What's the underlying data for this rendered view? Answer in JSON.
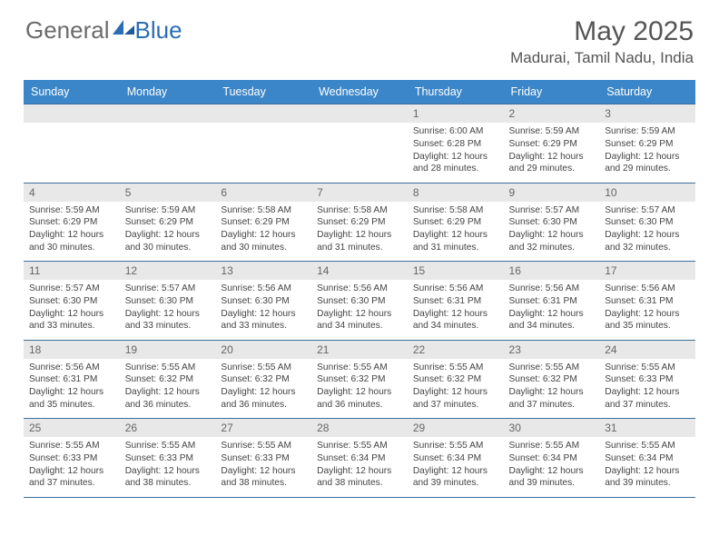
{
  "logo": {
    "text1": "General",
    "text2": "Blue",
    "color1": "#6b6b6b",
    "color2": "#2a6db3"
  },
  "title": "May 2025",
  "location": "Madurai, Tamil Nadu, India",
  "colors": {
    "header_bg": "#3b86c8",
    "header_text": "#ffffff",
    "border": "#3b6fa0",
    "daynum_bg": "#e8e8e8",
    "text": "#444444"
  },
  "day_headers": [
    "Sunday",
    "Monday",
    "Tuesday",
    "Wednesday",
    "Thursday",
    "Friday",
    "Saturday"
  ],
  "weeks": [
    [
      null,
      null,
      null,
      null,
      {
        "n": "1",
        "sr": "6:00 AM",
        "ss": "6:28 PM",
        "dl": "12 hours and 28 minutes."
      },
      {
        "n": "2",
        "sr": "5:59 AM",
        "ss": "6:29 PM",
        "dl": "12 hours and 29 minutes."
      },
      {
        "n": "3",
        "sr": "5:59 AM",
        "ss": "6:29 PM",
        "dl": "12 hours and 29 minutes."
      }
    ],
    [
      {
        "n": "4",
        "sr": "5:59 AM",
        "ss": "6:29 PM",
        "dl": "12 hours and 30 minutes."
      },
      {
        "n": "5",
        "sr": "5:59 AM",
        "ss": "6:29 PM",
        "dl": "12 hours and 30 minutes."
      },
      {
        "n": "6",
        "sr": "5:58 AM",
        "ss": "6:29 PM",
        "dl": "12 hours and 30 minutes."
      },
      {
        "n": "7",
        "sr": "5:58 AM",
        "ss": "6:29 PM",
        "dl": "12 hours and 31 minutes."
      },
      {
        "n": "8",
        "sr": "5:58 AM",
        "ss": "6:29 PM",
        "dl": "12 hours and 31 minutes."
      },
      {
        "n": "9",
        "sr": "5:57 AM",
        "ss": "6:30 PM",
        "dl": "12 hours and 32 minutes."
      },
      {
        "n": "10",
        "sr": "5:57 AM",
        "ss": "6:30 PM",
        "dl": "12 hours and 32 minutes."
      }
    ],
    [
      {
        "n": "11",
        "sr": "5:57 AM",
        "ss": "6:30 PM",
        "dl": "12 hours and 33 minutes."
      },
      {
        "n": "12",
        "sr": "5:57 AM",
        "ss": "6:30 PM",
        "dl": "12 hours and 33 minutes."
      },
      {
        "n": "13",
        "sr": "5:56 AM",
        "ss": "6:30 PM",
        "dl": "12 hours and 33 minutes."
      },
      {
        "n": "14",
        "sr": "5:56 AM",
        "ss": "6:30 PM",
        "dl": "12 hours and 34 minutes."
      },
      {
        "n": "15",
        "sr": "5:56 AM",
        "ss": "6:31 PM",
        "dl": "12 hours and 34 minutes."
      },
      {
        "n": "16",
        "sr": "5:56 AM",
        "ss": "6:31 PM",
        "dl": "12 hours and 34 minutes."
      },
      {
        "n": "17",
        "sr": "5:56 AM",
        "ss": "6:31 PM",
        "dl": "12 hours and 35 minutes."
      }
    ],
    [
      {
        "n": "18",
        "sr": "5:56 AM",
        "ss": "6:31 PM",
        "dl": "12 hours and 35 minutes."
      },
      {
        "n": "19",
        "sr": "5:55 AM",
        "ss": "6:32 PM",
        "dl": "12 hours and 36 minutes."
      },
      {
        "n": "20",
        "sr": "5:55 AM",
        "ss": "6:32 PM",
        "dl": "12 hours and 36 minutes."
      },
      {
        "n": "21",
        "sr": "5:55 AM",
        "ss": "6:32 PM",
        "dl": "12 hours and 36 minutes."
      },
      {
        "n": "22",
        "sr": "5:55 AM",
        "ss": "6:32 PM",
        "dl": "12 hours and 37 minutes."
      },
      {
        "n": "23",
        "sr": "5:55 AM",
        "ss": "6:32 PM",
        "dl": "12 hours and 37 minutes."
      },
      {
        "n": "24",
        "sr": "5:55 AM",
        "ss": "6:33 PM",
        "dl": "12 hours and 37 minutes."
      }
    ],
    [
      {
        "n": "25",
        "sr": "5:55 AM",
        "ss": "6:33 PM",
        "dl": "12 hours and 37 minutes."
      },
      {
        "n": "26",
        "sr": "5:55 AM",
        "ss": "6:33 PM",
        "dl": "12 hours and 38 minutes."
      },
      {
        "n": "27",
        "sr": "5:55 AM",
        "ss": "6:33 PM",
        "dl": "12 hours and 38 minutes."
      },
      {
        "n": "28",
        "sr": "5:55 AM",
        "ss": "6:34 PM",
        "dl": "12 hours and 38 minutes."
      },
      {
        "n": "29",
        "sr": "5:55 AM",
        "ss": "6:34 PM",
        "dl": "12 hours and 39 minutes."
      },
      {
        "n": "30",
        "sr": "5:55 AM",
        "ss": "6:34 PM",
        "dl": "12 hours and 39 minutes."
      },
      {
        "n": "31",
        "sr": "5:55 AM",
        "ss": "6:34 PM",
        "dl": "12 hours and 39 minutes."
      }
    ]
  ],
  "labels": {
    "sunrise": "Sunrise: ",
    "sunset": "Sunset: ",
    "daylight": "Daylight: "
  }
}
